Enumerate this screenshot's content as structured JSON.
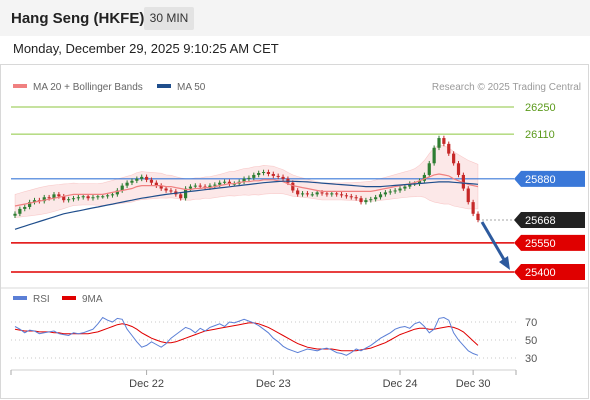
{
  "header": {
    "title": "Hang Seng (HKFE)",
    "timeframe_label": "30 MIN"
  },
  "timestamp": "Monday, December 29, 2025 9:10:25 AM CET",
  "colors": {
    "ma20": "#f08080",
    "ma50": "#1f4e8c",
    "green_level": "#8cc63f",
    "blue_level": "#3a78d8",
    "red_level": "#e00000",
    "current_price": "#222222",
    "rsi": "#5b7fd6",
    "rsi_ma": "#e00000",
    "candle_up": "#2e7d32",
    "candle_down": "#c62828"
  },
  "chart_data": [
    {
      "type": "candlestick",
      "title": "",
      "legend": [
        {
          "name": "MA 20 + Bollinger Bands",
          "color": "#f08080"
        },
        {
          "name": "MA 50",
          "color": "#1f4e8c"
        }
      ],
      "watermark": "Research © 2025 Trading Central",
      "x_tick_labels": [
        "Dec 22",
        "Dec 23",
        "Dec 24",
        "Dec 30"
      ],
      "x_tick_index": [
        27,
        53,
        79,
        94
      ],
      "y_range": [
        25390,
        26295
      ],
      "levels": [
        {
          "value": 26250,
          "label": "26250",
          "kind": "resistance"
        },
        {
          "value": 26110,
          "label": "26110",
          "kind": "resistance"
        },
        {
          "value": 25880,
          "label": "25880",
          "kind": "pivot"
        },
        {
          "value": 25668,
          "label": "25668",
          "kind": "current"
        },
        {
          "value": 25550,
          "label": "25550",
          "kind": "support"
        },
        {
          "value": 25400,
          "label": "25400",
          "kind": "support"
        }
      ],
      "forecast_arrow": {
        "from": 25668,
        "to": 25400
      },
      "close": [
        25700,
        25725,
        25735,
        25760,
        25770,
        25765,
        25785,
        25780,
        25800,
        25790,
        25770,
        25775,
        25780,
        25785,
        25790,
        25780,
        25785,
        25790,
        25790,
        25795,
        25800,
        25820,
        25845,
        25860,
        25870,
        25880,
        25890,
        25875,
        25860,
        25845,
        25830,
        25820,
        25815,
        25800,
        25780,
        25830,
        25840,
        25845,
        25840,
        25835,
        25845,
        25850,
        25860,
        25865,
        25855,
        25855,
        25865,
        25880,
        25885,
        25900,
        25910,
        25915,
        25905,
        25895,
        25890,
        25880,
        25860,
        25820,
        25800,
        25805,
        25800,
        25800,
        25810,
        25805,
        25800,
        25805,
        25800,
        25795,
        25790,
        25785,
        25780,
        25760,
        25770,
        25775,
        25785,
        25800,
        25810,
        25815,
        25820,
        25830,
        25840,
        25855,
        25855,
        25870,
        25900,
        25960,
        26040,
        26090,
        26060,
        26010,
        25960,
        25900,
        25830,
        25760,
        25700,
        25668
      ],
      "ma20": [
        25740,
        25745,
        25750,
        25755,
        25760,
        25765,
        25770,
        25775,
        25780,
        25785,
        25790,
        25795,
        25800,
        25800,
        25800,
        25800,
        25800,
        25800,
        25800,
        25805,
        25810,
        25815,
        25820,
        25825,
        25830,
        25840,
        25845,
        25845,
        25845,
        25845,
        25845,
        25840,
        25840,
        25835,
        25830,
        25825,
        25825,
        25830,
        25830,
        25835,
        25835,
        25840,
        25845,
        25850,
        25855,
        25855,
        25860,
        25865,
        25865,
        25870,
        25870,
        25875,
        25875,
        25875,
        25870,
        25865,
        25855,
        25845,
        25840,
        25835,
        25830,
        25825,
        25820,
        25815,
        25815,
        25815,
        25815,
        25815,
        25815,
        25815,
        25815,
        25815,
        25815,
        25815,
        25820,
        25825,
        25830,
        25835,
        25840,
        25845,
        25850,
        25855,
        25860,
        25870,
        25880,
        25890,
        25900,
        25905,
        25900,
        25895,
        25880,
        25870,
        25860,
        25850,
        25845,
        25840
      ],
      "ma50": [
        25620,
        25628,
        25636,
        25644,
        25652,
        25660,
        25668,
        25676,
        25684,
        25692,
        25700,
        25705,
        25710,
        25715,
        25720,
        25725,
        25730,
        25735,
        25740,
        25745,
        25750,
        25755,
        25760,
        25765,
        25770,
        25775,
        25780,
        25784,
        25788,
        25792,
        25796,
        25800,
        25803,
        25806,
        25809,
        25812,
        25815,
        25818,
        25821,
        25824,
        25827,
        25830,
        25833,
        25836,
        25839,
        25842,
        25845,
        25848,
        25851,
        25854,
        25857,
        25860,
        25862,
        25864,
        25866,
        25868,
        25868,
        25867,
        25866,
        25865,
        25864,
        25862,
        25860,
        25858,
        25856,
        25854,
        25852,
        25850,
        25848,
        25846,
        25844,
        25842,
        25840,
        25840,
        25840,
        25840,
        25842,
        25844,
        25846,
        25848,
        25850,
        25852,
        25854,
        25856,
        25858,
        25860,
        25862,
        25864,
        25864,
        25864,
        25862,
        25860,
        25858,
        25856,
        25854,
        25852
      ],
      "band_width": [
        60,
        62,
        64,
        66,
        68,
        70,
        70,
        70,
        68,
        66,
        64,
        60,
        58,
        56,
        55,
        55,
        55,
        56,
        58,
        60,
        62,
        64,
        66,
        68,
        70,
        72,
        72,
        70,
        68,
        66,
        64,
        60,
        58,
        56,
        55,
        55,
        55,
        55,
        55,
        55,
        56,
        57,
        58,
        60,
        62,
        64,
        66,
        68,
        70,
        72,
        74,
        74,
        72,
        70,
        66,
        62,
        58,
        55,
        52,
        50,
        48,
        46,
        45,
        44,
        44,
        44,
        44,
        44,
        45,
        46,
        47,
        48,
        50,
        52,
        54,
        56,
        58,
        60,
        62,
        64,
        66,
        68,
        72,
        80,
        95,
        120,
        140,
        150,
        150,
        145,
        140,
        135,
        130,
        125,
        120,
        115
      ]
    },
    {
      "type": "line",
      "title": "",
      "legend": [
        {
          "name": "RSI",
          "color": "#5b7fd6"
        },
        {
          "name": "9MA",
          "color": "#e00000"
        }
      ],
      "y_range": [
        22,
        80
      ],
      "y_tick_labels": [
        "70",
        "50",
        "30"
      ],
      "y_ticks": [
        70,
        50,
        30
      ],
      "series": [
        {
          "name": "RSI",
          "values": [
            65,
            62,
            58,
            61,
            60,
            57,
            58,
            59,
            60,
            57,
            56,
            55,
            58,
            57,
            58,
            60,
            62,
            68,
            75,
            72,
            70,
            74,
            73,
            62,
            55,
            48,
            42,
            44,
            48,
            45,
            42,
            46,
            52,
            56,
            60,
            64,
            62,
            58,
            63,
            60,
            64,
            66,
            68,
            65,
            70,
            69,
            71,
            73,
            71,
            69,
            66,
            62,
            58,
            52,
            48,
            43,
            40,
            38,
            36,
            38,
            40,
            39,
            38,
            40,
            41,
            39,
            36,
            35,
            33,
            36,
            40,
            38,
            41,
            44,
            48,
            52,
            55,
            58,
            62,
            64,
            65,
            63,
            68,
            70,
            65,
            58,
            62,
            74,
            75,
            72,
            58,
            50,
            44,
            38,
            35,
            33
          ]
        },
        {
          "name": "9MA",
          "values": [
            62,
            61,
            60,
            60,
            60,
            59,
            59,
            59,
            58,
            58,
            57,
            57,
            57,
            57,
            57,
            57,
            58,
            59,
            61,
            63,
            65,
            67,
            68,
            67,
            65,
            62,
            58,
            55,
            52,
            50,
            48,
            47,
            47,
            48,
            50,
            52,
            54,
            56,
            58,
            60,
            61,
            62,
            63,
            64,
            65,
            66,
            67,
            68,
            69,
            69,
            68,
            66,
            64,
            61,
            58,
            55,
            52,
            49,
            46,
            44,
            42,
            41,
            40,
            40,
            40,
            40,
            39,
            38,
            38,
            38,
            38,
            39,
            40,
            41,
            43,
            45,
            47,
            50,
            53,
            56,
            58,
            60,
            62,
            63,
            63,
            62,
            62,
            63,
            64,
            65,
            64,
            62,
            59,
            54,
            49,
            44
          ]
        }
      ]
    }
  ]
}
